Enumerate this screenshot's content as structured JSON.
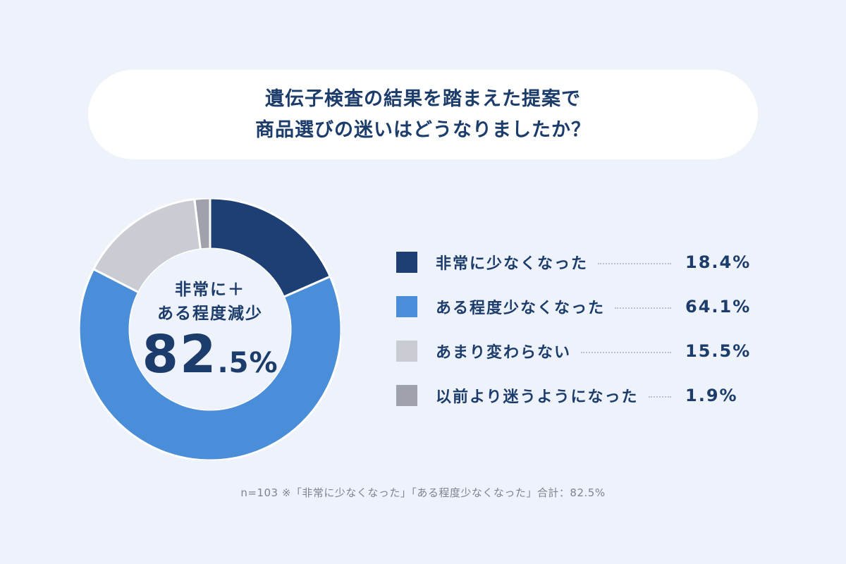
{
  "title": {
    "line1": "遺伝子検査の結果を踏まえた提案で",
    "line2": "商品選びの迷いはどうなりましたか？"
  },
  "center": {
    "label_line1": "非常に＋",
    "label_line2": "ある程度減少",
    "value_int": "82",
    "value_dec": ".5%"
  },
  "legend": [
    {
      "label": "非常に少なくなった",
      "value": "18.4%",
      "color": "#1e3f73"
    },
    {
      "label": "ある程度少なくなった",
      "value": "64.1%",
      "color": "#4a8dd8"
    },
    {
      "label": "あまり変わらない",
      "value": "15.5%",
      "color": "#c9ccd3"
    },
    {
      "label": "以前より迷うようになった",
      "value": "1.9%",
      "color": "#9fa2aa"
    }
  ],
  "footnote": "n=103 ※「非常に少なくなった」「ある程度少なくなった」合計：82.5%",
  "chart_data": {
    "type": "pie",
    "subtype": "donut",
    "title": "遺伝子検査の結果を踏まえた提案で商品選びの迷いはどうなりましたか？",
    "categories": [
      "非常に少なくなった",
      "ある程度少なくなった",
      "あまり変わらない",
      "以前より迷うようになった"
    ],
    "values": [
      18.4,
      64.1,
      15.5,
      1.9
    ],
    "colors": [
      "#1e3f73",
      "#4a8dd8",
      "#c9ccd3",
      "#9fa2aa"
    ],
    "center_annotation": "非常に＋ある程度減少 82.5%",
    "sample_size": "n=103",
    "legend_position": "right",
    "start_angle": "12 o'clock, clockwise"
  }
}
